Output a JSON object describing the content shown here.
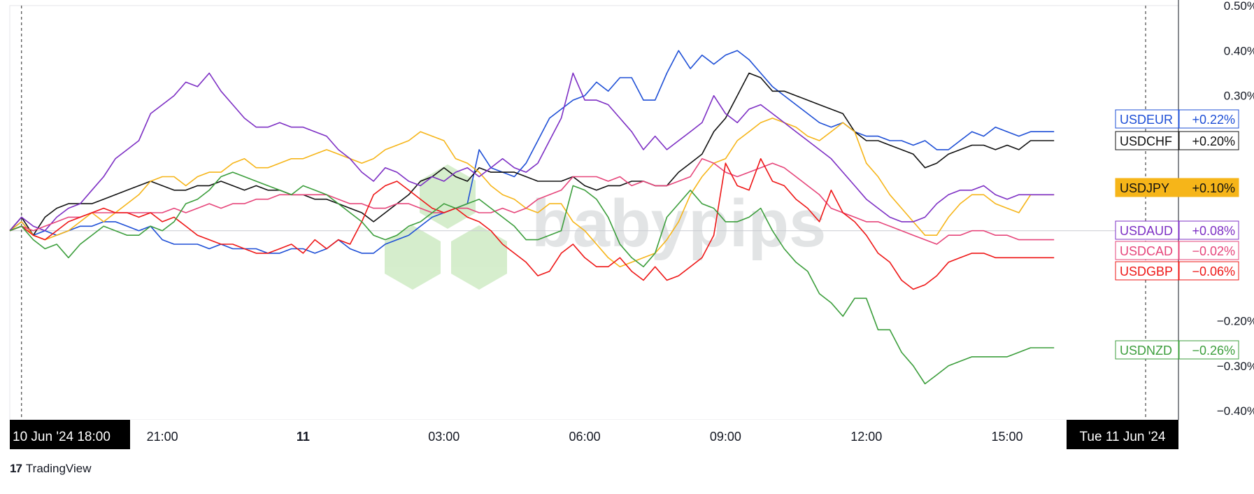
{
  "chart_data": {
    "type": "line",
    "title": "",
    "xlabel": "",
    "ylabel": "",
    "y_unit": "%",
    "ylim": [
      -0.42,
      0.5
    ],
    "yticks": [
      {
        "value": 0.5,
        "label": "0.50%"
      },
      {
        "value": 0.4,
        "label": "0.40%"
      },
      {
        "value": 0.3,
        "label": "0.30%"
      },
      {
        "value": -0.2,
        "label": "−0.20%"
      },
      {
        "value": -0.3,
        "label": "−0.30%"
      },
      {
        "value": -0.4,
        "label": "−0.40%"
      }
    ],
    "xlim": [
      17.75,
      42.65
    ],
    "x_unit": "hours from 10 Jun '24 00:00",
    "xticks": [
      {
        "value": 21,
        "label": "21:00"
      },
      {
        "value": 24,
        "label": "11"
      },
      {
        "value": 27,
        "label": "03:00"
      },
      {
        "value": 30,
        "label": "06:00"
      },
      {
        "value": 33,
        "label": "09:00"
      },
      {
        "value": 36,
        "label": "12:00"
      },
      {
        "value": 39,
        "label": "15:00"
      }
    ],
    "crosshair_start": {
      "value": 18,
      "label": "10 Jun '24   18:00"
    },
    "crosshair_end": {
      "value": 41.95,
      "label": "Tue 11 Jun '24"
    },
    "series": [
      {
        "name": "USDEUR",
        "color": "#1e4fd6",
        "label": "+0.22%",
        "badge_style": "outline",
        "x_start": 17.75,
        "x_step": 0.25,
        "values": [
          0.0,
          0.02,
          -0.01,
          0.0,
          -0.01,
          0.0,
          0.01,
          0.01,
          0.02,
          0.02,
          0.01,
          0.0,
          0.01,
          -0.02,
          -0.03,
          -0.03,
          -0.03,
          -0.04,
          -0.03,
          -0.04,
          -0.04,
          -0.04,
          -0.05,
          -0.05,
          -0.04,
          -0.04,
          -0.05,
          -0.04,
          -0.02,
          -0.04,
          -0.05,
          -0.05,
          -0.03,
          -0.02,
          -0.01,
          0.01,
          0.03,
          0.04,
          0.05,
          0.06,
          0.18,
          0.14,
          0.13,
          0.12,
          0.15,
          0.2,
          0.25,
          0.27,
          0.29,
          0.3,
          0.33,
          0.31,
          0.34,
          0.34,
          0.29,
          0.29,
          0.35,
          0.4,
          0.36,
          0.39,
          0.37,
          0.39,
          0.4,
          0.38,
          0.35,
          0.32,
          0.3,
          0.28,
          0.26,
          0.24,
          0.23,
          0.24,
          0.22,
          0.21,
          0.21,
          0.2,
          0.2,
          0.19,
          0.2,
          0.18,
          0.18,
          0.2,
          0.22,
          0.21,
          0.23,
          0.22,
          0.21,
          0.22,
          0.22,
          0.22
        ]
      },
      {
        "name": "USDCHF",
        "color": "#111111",
        "label": "+0.20%",
        "badge_style": "outline",
        "x_start": 17.75,
        "x_step": 0.25,
        "values": [
          0.0,
          0.03,
          -0.01,
          0.03,
          0.05,
          0.06,
          0.06,
          0.06,
          0.07,
          0.08,
          0.09,
          0.1,
          0.11,
          0.1,
          0.09,
          0.09,
          0.1,
          0.1,
          0.11,
          0.1,
          0.09,
          0.1,
          0.09,
          0.09,
          0.08,
          0.08,
          0.07,
          0.07,
          0.06,
          0.05,
          0.04,
          0.02,
          0.04,
          0.06,
          0.08,
          0.11,
          0.12,
          0.14,
          0.12,
          0.11,
          0.14,
          0.13,
          0.13,
          0.13,
          0.12,
          0.11,
          0.11,
          0.11,
          0.12,
          0.1,
          0.09,
          0.1,
          0.1,
          0.11,
          0.11,
          0.1,
          0.1,
          0.13,
          0.15,
          0.17,
          0.22,
          0.25,
          0.3,
          0.35,
          0.34,
          0.31,
          0.31,
          0.3,
          0.29,
          0.28,
          0.27,
          0.26,
          0.22,
          0.2,
          0.2,
          0.19,
          0.18,
          0.17,
          0.14,
          0.15,
          0.17,
          0.18,
          0.19,
          0.19,
          0.18,
          0.19,
          0.18,
          0.2,
          0.2,
          0.2
        ]
      },
      {
        "name": "USDJPY",
        "color": "#f6b519",
        "label": "+0.10%",
        "badge_style": "filled",
        "x_start": 17.75,
        "x_step": 0.25,
        "values": [
          0.0,
          0.02,
          -0.01,
          -0.02,
          -0.01,
          0.0,
          0.02,
          0.04,
          0.02,
          0.04,
          0.06,
          0.08,
          0.11,
          0.12,
          0.12,
          0.1,
          0.12,
          0.13,
          0.13,
          0.15,
          0.16,
          0.14,
          0.14,
          0.15,
          0.16,
          0.16,
          0.17,
          0.18,
          0.17,
          0.16,
          0.15,
          0.16,
          0.18,
          0.19,
          0.2,
          0.22,
          0.21,
          0.2,
          0.16,
          0.15,
          0.13,
          0.1,
          0.08,
          0.07,
          0.05,
          0.04,
          0.06,
          0.06,
          0.02,
          0.0,
          -0.03,
          -0.06,
          -0.08,
          -0.07,
          -0.06,
          -0.05,
          -0.02,
          0.02,
          0.08,
          0.12,
          0.15,
          0.16,
          0.2,
          0.22,
          0.24,
          0.25,
          0.24,
          0.23,
          0.21,
          0.2,
          0.22,
          0.24,
          0.22,
          0.15,
          0.12,
          0.08,
          0.05,
          0.02,
          -0.01,
          -0.01,
          0.03,
          0.06,
          0.08,
          0.08,
          0.06,
          0.05,
          0.04,
          0.08,
          0.08,
          0.08
        ]
      },
      {
        "name": "USDAUD",
        "color": "#7d2fc4",
        "label": "+0.08%",
        "badge_style": "outline",
        "x_start": 17.75,
        "x_step": 0.25,
        "values": [
          0.0,
          0.03,
          0.01,
          0.0,
          0.03,
          0.05,
          0.06,
          0.09,
          0.12,
          0.16,
          0.18,
          0.2,
          0.26,
          0.28,
          0.3,
          0.33,
          0.32,
          0.35,
          0.31,
          0.28,
          0.25,
          0.23,
          0.23,
          0.24,
          0.23,
          0.23,
          0.22,
          0.21,
          0.18,
          0.16,
          0.13,
          0.11,
          0.14,
          0.13,
          0.11,
          0.1,
          0.12,
          0.11,
          0.13,
          0.14,
          0.12,
          0.14,
          0.16,
          0.14,
          0.13,
          0.15,
          0.2,
          0.25,
          0.35,
          0.29,
          0.29,
          0.28,
          0.25,
          0.22,
          0.18,
          0.21,
          0.18,
          0.2,
          0.22,
          0.24,
          0.3,
          0.26,
          0.24,
          0.27,
          0.28,
          0.26,
          0.24,
          0.22,
          0.2,
          0.18,
          0.16,
          0.13,
          0.1,
          0.07,
          0.05,
          0.03,
          0.02,
          0.02,
          0.03,
          0.06,
          0.08,
          0.09,
          0.09,
          0.1,
          0.08,
          0.07,
          0.08,
          0.08,
          0.08,
          0.08
        ]
      },
      {
        "name": "USDCAD",
        "color": "#e6457a",
        "label": "−0.02%",
        "badge_style": "outline",
        "x_start": 17.75,
        "x_step": 0.25,
        "values": [
          0.0,
          0.01,
          0.0,
          0.01,
          0.02,
          0.03,
          0.03,
          0.04,
          0.04,
          0.04,
          0.04,
          0.04,
          0.04,
          0.04,
          0.05,
          0.04,
          0.05,
          0.06,
          0.05,
          0.06,
          0.06,
          0.07,
          0.07,
          0.08,
          0.08,
          0.08,
          0.08,
          0.08,
          0.07,
          0.06,
          0.06,
          0.05,
          0.05,
          0.06,
          0.06,
          0.05,
          0.04,
          0.04,
          0.05,
          0.05,
          0.04,
          0.04,
          0.05,
          0.04,
          0.05,
          0.07,
          0.08,
          0.09,
          0.12,
          0.12,
          0.12,
          0.11,
          0.12,
          0.1,
          0.11,
          0.1,
          0.1,
          0.11,
          0.12,
          0.16,
          0.15,
          0.13,
          0.12,
          0.13,
          0.14,
          0.15,
          0.14,
          0.12,
          0.1,
          0.08,
          0.05,
          0.04,
          0.03,
          0.02,
          0.02,
          0.01,
          0.0,
          -0.01,
          -0.02,
          -0.03,
          -0.01,
          -0.01,
          0.0,
          0.0,
          -0.01,
          -0.01,
          -0.02,
          -0.02,
          -0.02,
          -0.02
        ]
      },
      {
        "name": "USDGBP",
        "color": "#ee1616",
        "label": "−0.06%",
        "badge_style": "outline",
        "x_start": 17.75,
        "x_step": 0.25,
        "values": [
          0.0,
          0.01,
          -0.01,
          -0.02,
          0.0,
          0.02,
          0.03,
          0.04,
          0.05,
          0.04,
          0.04,
          0.03,
          0.04,
          0.02,
          0.03,
          0.01,
          -0.01,
          -0.02,
          -0.03,
          -0.03,
          -0.04,
          -0.05,
          -0.05,
          -0.04,
          -0.03,
          -0.05,
          -0.02,
          -0.04,
          -0.02,
          -0.03,
          0.02,
          0.08,
          0.1,
          0.11,
          0.09,
          0.07,
          0.05,
          0.04,
          0.05,
          0.03,
          0.02,
          0.0,
          -0.03,
          -0.05,
          -0.07,
          -0.1,
          -0.09,
          -0.05,
          -0.03,
          -0.06,
          -0.08,
          -0.08,
          -0.06,
          -0.09,
          -0.11,
          -0.08,
          -0.11,
          -0.1,
          -0.08,
          -0.06,
          -0.01,
          0.15,
          0.1,
          0.09,
          0.16,
          0.11,
          0.1,
          0.07,
          0.05,
          0.02,
          0.09,
          0.04,
          0.02,
          -0.01,
          -0.05,
          -0.07,
          -0.11,
          -0.13,
          -0.12,
          -0.1,
          -0.07,
          -0.06,
          -0.05,
          -0.05,
          -0.06,
          -0.06,
          -0.06,
          -0.06,
          -0.06,
          -0.06
        ]
      },
      {
        "name": "USDNZD",
        "color": "#3c9e3c",
        "label": "−0.26%",
        "badge_style": "outline",
        "x_start": 17.75,
        "x_step": 0.25,
        "values": [
          0.0,
          0.01,
          -0.02,
          -0.04,
          -0.03,
          -0.06,
          -0.03,
          -0.01,
          0.01,
          0.0,
          -0.01,
          -0.01,
          0.01,
          0.0,
          0.02,
          0.06,
          0.07,
          0.09,
          0.12,
          0.13,
          0.12,
          0.11,
          0.1,
          0.09,
          0.08,
          0.1,
          0.09,
          0.08,
          0.06,
          0.04,
          0.02,
          -0.01,
          -0.02,
          -0.01,
          0.01,
          0.02,
          0.04,
          0.06,
          0.05,
          0.06,
          0.07,
          0.05,
          0.03,
          0.01,
          -0.02,
          -0.02,
          -0.01,
          0.0,
          0.1,
          0.09,
          0.07,
          0.03,
          -0.03,
          -0.06,
          -0.08,
          -0.05,
          0.03,
          0.06,
          0.09,
          0.06,
          0.05,
          0.02,
          0.02,
          0.03,
          0.05,
          0.0,
          -0.04,
          -0.07,
          -0.09,
          -0.14,
          -0.16,
          -0.19,
          -0.15,
          -0.15,
          -0.22,
          -0.22,
          -0.27,
          -0.3,
          -0.34,
          -0.32,
          -0.3,
          -0.29,
          -0.28,
          -0.28,
          -0.28,
          -0.28,
          -0.27,
          -0.26,
          -0.26,
          -0.26
        ]
      }
    ],
    "watermark": "babypips",
    "footer_brand": "TradingView",
    "footer_logo_glyph": "17"
  }
}
